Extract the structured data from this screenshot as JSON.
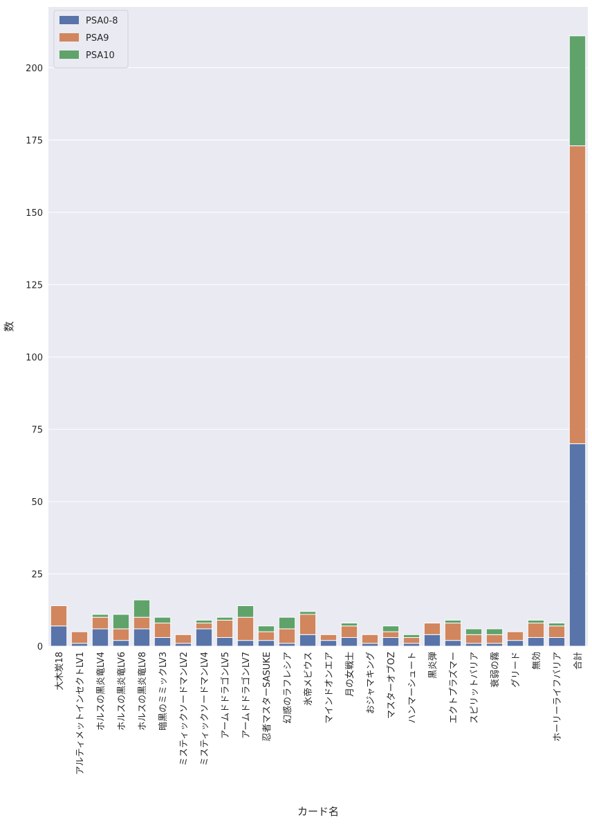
{
  "chart_data": {
    "type": "bar",
    "stacked": true,
    "categories": [
      "大木炭18",
      "アルティメットインセクトLV1",
      "ホルスの黒炎竜LV4",
      "ホルスの黒炎竜LV6",
      "ホルスの黒炎竜LV8",
      "暗黒のミミックLV3",
      "ミスティックソードマンLV2",
      "ミスティックソードマンLV4",
      "アームドドラゴンLV5",
      "アームドドラゴンLV7",
      "忍者マスターSASUKE",
      "幻惑のラフレシア",
      "氷帝メビウス",
      "マインドオンエア",
      "月の女戦士",
      "おジャマキング",
      "マスターオブOZ",
      "ハンマーシュート",
      "黒炎弾",
      "エクトプラズマー",
      "スピリットバリア",
      "衰弱の霧",
      "グリード",
      "無効",
      "ホーリーライフバリア",
      "合計"
    ],
    "series": [
      {
        "name": "PSA0-8",
        "color": "#5874a8",
        "values": [
          7,
          1,
          6,
          2,
          6,
          3,
          1,
          6,
          3,
          2,
          2,
          1,
          4,
          2,
          3,
          1,
          3,
          1,
          4,
          2,
          1,
          1,
          2,
          3,
          3,
          70
        ]
      },
      {
        "name": "PSA9",
        "color": "#d1865e",
        "values": [
          7,
          4,
          4,
          4,
          4,
          5,
          3,
          2,
          6,
          8,
          3,
          5,
          7,
          2,
          4,
          3,
          2,
          2,
          4,
          6,
          3,
          3,
          3,
          5,
          4,
          103
        ]
      },
      {
        "name": "PSA10",
        "color": "#5fa36b",
        "values": [
          0,
          0,
          1,
          5,
          6,
          2,
          0,
          1,
          1,
          4,
          2,
          4,
          1,
          0,
          1,
          0,
          2,
          1,
          0,
          1,
          2,
          2,
          0,
          1,
          1,
          38
        ]
      }
    ],
    "xlabel": "カード名",
    "ylabel": "数",
    "ylim": [
      0,
      221
    ],
    "yticks": [
      0,
      25,
      50,
      75,
      100,
      125,
      150,
      175,
      200
    ],
    "grid": true,
    "legend_position": "top-left"
  }
}
